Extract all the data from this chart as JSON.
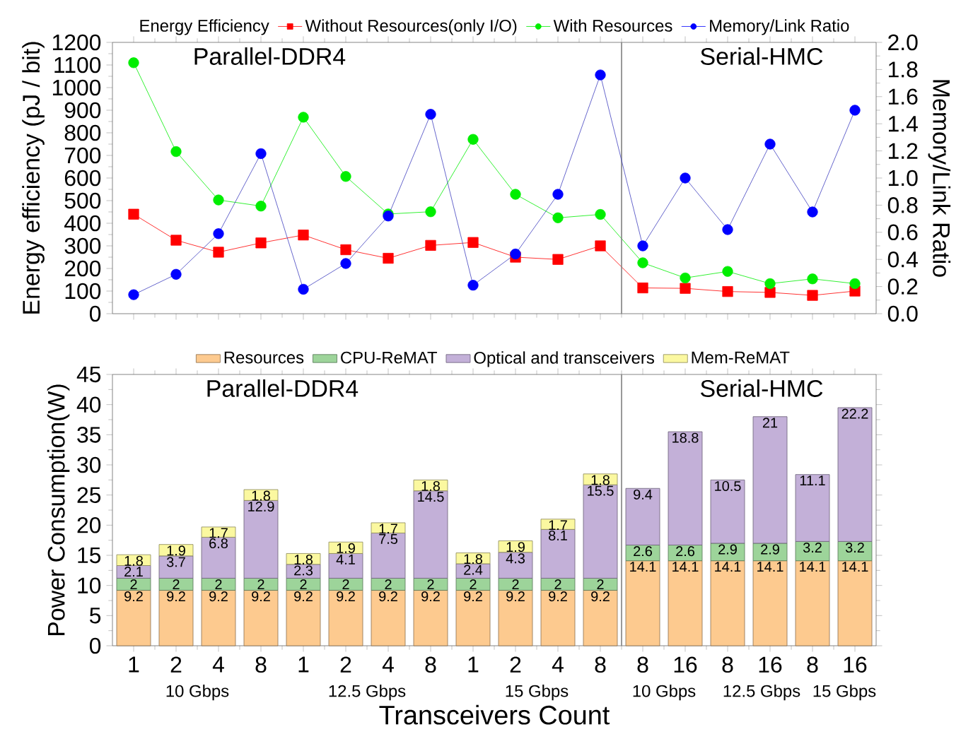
{
  "chart_data": [
    {
      "type": "line",
      "categories": [
        "1",
        "2",
        "4",
        "8",
        "1",
        "2",
        "4",
        "8",
        "1",
        "2",
        "4",
        "8",
        "8",
        "16",
        "8",
        "16",
        "8",
        "16"
      ],
      "ylabel": "Energy efficiency (pJ / bit)",
      "y2label": "Memory/Link Ratio",
      "legend_title": "Energy Efficiency",
      "legend": "top",
      "ylim": [
        0,
        1200
      ],
      "yticks": [
        0,
        100,
        200,
        300,
        400,
        500,
        600,
        700,
        800,
        900,
        1000,
        1100,
        1200
      ],
      "y2lim": [
        0,
        2
      ],
      "y2ticks": [
        {
          "value": 0,
          "label": "0.0"
        },
        {
          "value": 0.2,
          "label": "0.2"
        },
        {
          "value": 0.4,
          "label": "0.4"
        },
        {
          "value": 0.6,
          "label": "0.6"
        },
        {
          "value": 0.8,
          "label": "0.8"
        },
        {
          "value": 1.0,
          "label": "1.0"
        },
        {
          "value": 1.2,
          "label": "1.2"
        },
        {
          "value": 1.4,
          "label": "1.4"
        },
        {
          "value": 1.6,
          "label": "1.6"
        },
        {
          "value": 1.8,
          "label": "1.8"
        },
        {
          "value": 2.0,
          "label": "2.0"
        }
      ],
      "tick_labels": "y",
      "annotations": [
        "Parallel-DDR4",
        "Serial-HMC"
      ],
      "series": [
        {
          "name": "Without Resources(only I/O)",
          "color": "#ff0000",
          "marker": "square",
          "values": [
            440,
            325,
            272,
            313,
            348,
            283,
            245,
            302,
            315,
            250,
            240,
            300,
            114,
            112,
            98,
            94,
            81,
            100
          ]
        },
        {
          "name": "With Resources",
          "color": "#00ee00",
          "marker": "circle",
          "values": [
            1110,
            717,
            503,
            476,
            869,
            607,
            441,
            451,
            771,
            528,
            424,
            439,
            225,
            158,
            187,
            133,
            154,
            133
          ]
        },
        {
          "name": "Memory/Link Ratio",
          "color": "#0000ff",
          "marker": "circle",
          "axis": "y2",
          "values": [
            0.14,
            0.29,
            0.59,
            1.18,
            0.18,
            0.37,
            0.72,
            1.47,
            0.21,
            0.44,
            0.88,
            1.76,
            0.5,
            1.0,
            0.62,
            1.25,
            0.75,
            1.5
          ]
        }
      ]
    },
    {
      "type": "bar",
      "stacked": true,
      "categories": [
        "1",
        "2",
        "4",
        "8",
        "1",
        "2",
        "4",
        "8",
        "1",
        "2",
        "4",
        "8",
        "8",
        "16",
        "8",
        "16",
        "8",
        "16"
      ],
      "ylabel": "Power Consumption(W)",
      "xlabel": "Transceivers Count",
      "legend": "top",
      "data_labels": true,
      "ylim": [
        0,
        45
      ],
      "yticks": [
        0,
        5,
        10,
        15,
        20,
        25,
        30,
        35,
        40,
        45
      ],
      "annotations": [
        "Parallel-DDR4",
        "Serial-HMC",
        "10 Gbps",
        "12.5 Gbps",
        "15 Gbps",
        "10 Gbps",
        "12.5 Gbps",
        "15 Gbps"
      ],
      "series": [
        {
          "name": "Resources",
          "color": "#fdca8f",
          "values": [
            9.2,
            9.2,
            9.2,
            9.2,
            9.2,
            9.2,
            9.2,
            9.2,
            9.2,
            9.2,
            9.2,
            9.2,
            14.1,
            14.1,
            14.1,
            14.1,
            14.1,
            14.1
          ]
        },
        {
          "name": "CPU-ReMAT",
          "color": "#9dd49a",
          "values": [
            2,
            2,
            2,
            2,
            2,
            2,
            2,
            2,
            2,
            2,
            2,
            2,
            2.6,
            2.6,
            2.9,
            2.9,
            3.2,
            3.2
          ]
        },
        {
          "name": "Optical and transceivers",
          "color": "#c3b0d8",
          "values": [
            2.1,
            3.7,
            6.8,
            12.9,
            2.3,
            4.1,
            7.5,
            14.5,
            2.4,
            4.3,
            8.1,
            15.5,
            9.4,
            18.8,
            10.5,
            21,
            11.1,
            22.2
          ]
        },
        {
          "name": "Mem-ReMAT",
          "color": "#fbf8a0",
          "values": [
            1.8,
            1.9,
            1.7,
            1.8,
            1.8,
            1.9,
            1.7,
            1.8,
            1.8,
            1.9,
            1.7,
            1.8,
            null,
            null,
            null,
            null,
            null,
            null
          ]
        }
      ]
    }
  ]
}
